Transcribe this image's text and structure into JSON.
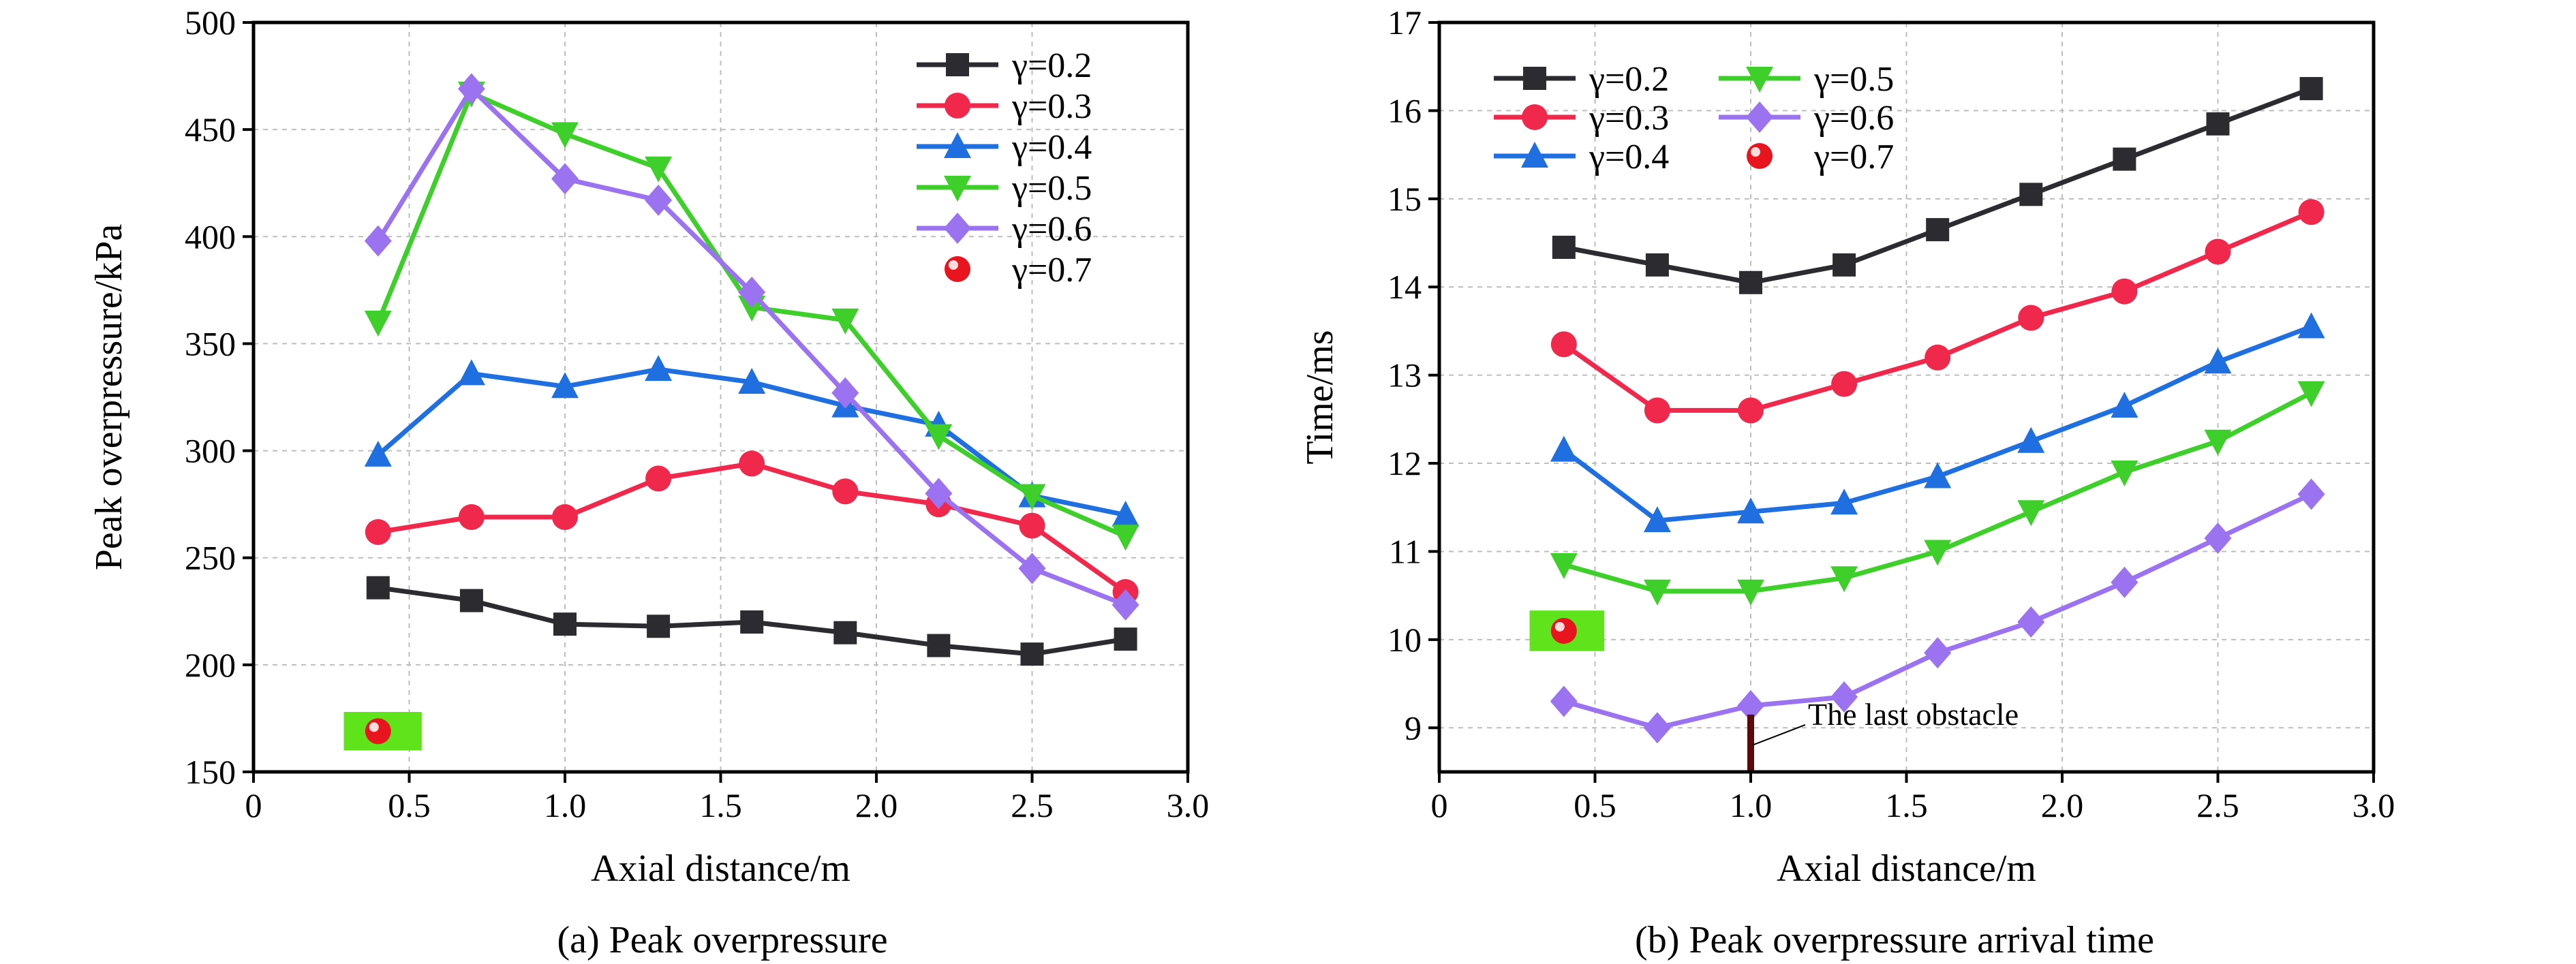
{
  "figure": {
    "panel_a_caption": "(a) Peak overpressure",
    "panel_b_caption": "(b) Peak overpressure arrival time",
    "colors": {
      "gamma_0_2": "#2b2b30",
      "gamma_0_3": "#f0284b",
      "gamma_0_4": "#1f6fe0",
      "gamma_0_5": "#3ecf2a",
      "gamma_0_6": "#9b73f0",
      "gamma_0_7": "#e8141e",
      "highlight_box": "#5fe31a",
      "obstacle_marker": "#5a0a0a"
    }
  },
  "chart_data": [
    {
      "type": "line",
      "caption": "(a) Peak overpressure",
      "xlabel": "Axial distance/m",
      "ylabel": "Peak overpressure/kPa",
      "xlim": [
        0,
        3.0
      ],
      "ylim": [
        150,
        500
      ],
      "x_ticks": [
        "0",
        "0.5",
        "1.0",
        "1.5",
        "2.0",
        "2.5",
        "3.0"
      ],
      "y_ticks": [
        "150",
        "200",
        "250",
        "300",
        "350",
        "400",
        "450",
        "500"
      ],
      "x_tick_values": [
        0,
        0.5,
        1.0,
        1.5,
        2.0,
        2.5,
        3.0
      ],
      "y_tick_values": [
        150,
        200,
        250,
        300,
        350,
        400,
        450,
        500
      ],
      "grid": true,
      "legend_position": "top-right",
      "legend_columns": 1,
      "series": [
        {
          "name": "γ=0.2",
          "marker": "square",
          "color": "#2b2b30",
          "x": [
            0.4,
            0.7,
            1.0,
            1.3,
            1.6,
            1.9,
            2.2,
            2.5,
            2.8
          ],
          "y": [
            236,
            230,
            219,
            218,
            220,
            215,
            209,
            205,
            212
          ]
        },
        {
          "name": "γ=0.3",
          "marker": "circle",
          "color": "#f0284b",
          "x": [
            0.4,
            0.7,
            1.0,
            1.3,
            1.6,
            1.9,
            2.2,
            2.5,
            2.8
          ],
          "y": [
            262,
            269,
            269,
            287,
            294,
            281,
            275,
            265,
            234
          ]
        },
        {
          "name": "γ=0.4",
          "marker": "triangle-up",
          "color": "#1f6fe0",
          "x": [
            0.4,
            0.7,
            1.0,
            1.3,
            1.6,
            1.9,
            2.2,
            2.5,
            2.8
          ],
          "y": [
            298,
            336,
            330,
            338,
            332,
            321,
            312,
            279,
            270
          ]
        },
        {
          "name": "γ=0.5",
          "marker": "triangle-down",
          "color": "#3ecf2a",
          "x": [
            0.4,
            0.7,
            1.0,
            1.3,
            1.6,
            1.9,
            2.2,
            2.5,
            2.8
          ],
          "y": [
            360,
            467,
            448,
            432,
            367,
            361,
            307,
            279,
            260
          ]
        },
        {
          "name": "γ=0.6",
          "marker": "diamond",
          "color": "#9b73f0",
          "x": [
            0.4,
            0.7,
            1.0,
            1.3,
            1.6,
            1.9,
            2.2,
            2.5,
            2.8
          ],
          "y": [
            398,
            469,
            427,
            417,
            374,
            327,
            280,
            245,
            228
          ]
        },
        {
          "name": "γ=0.7",
          "marker": "ball",
          "color": "#e8141e",
          "x": [
            0.4
          ],
          "y": [
            169
          ],
          "highlight": {
            "x_from": 0.29,
            "x_to": 0.54,
            "y_from": 160,
            "y_to": 178
          }
        }
      ]
    },
    {
      "type": "line",
      "caption": "(b) Peak overpressure arrival time",
      "xlabel": "Axial distance/m",
      "ylabel": "Time/ms",
      "xlim": [
        0,
        3.0
      ],
      "ylim": [
        8.5,
        17
      ],
      "x_ticks": [
        "0",
        "0.5",
        "1.0",
        "1.5",
        "2.0",
        "2.5",
        "3.0"
      ],
      "y_ticks": [
        "9",
        "10",
        "11",
        "12",
        "13",
        "14",
        "15",
        "16",
        "17"
      ],
      "x_tick_values": [
        0,
        0.5,
        1.0,
        1.5,
        2.0,
        2.5,
        3.0
      ],
      "y_tick_values": [
        9,
        10,
        11,
        12,
        13,
        14,
        15,
        16,
        17
      ],
      "grid": true,
      "legend_position": "top-left",
      "legend_columns": 2,
      "annotation": {
        "text": "The last obstacle",
        "x": 1.0,
        "y_top": 9.15
      },
      "series": [
        {
          "name": "γ=0.2",
          "marker": "square",
          "color": "#2b2b30",
          "x": [
            0.4,
            0.7,
            1.0,
            1.3,
            1.6,
            1.9,
            2.2,
            2.5,
            2.8
          ],
          "y": [
            14.45,
            14.25,
            14.05,
            14.25,
            14.65,
            15.05,
            15.45,
            15.85,
            16.25
          ]
        },
        {
          "name": "γ=0.3",
          "marker": "circle",
          "color": "#f0284b",
          "x": [
            0.4,
            0.7,
            1.0,
            1.3,
            1.6,
            1.9,
            2.2,
            2.5,
            2.8
          ],
          "y": [
            13.35,
            12.6,
            12.6,
            12.9,
            13.2,
            13.65,
            13.95,
            14.4,
            14.85
          ]
        },
        {
          "name": "γ=0.4",
          "marker": "triangle-up",
          "color": "#1f6fe0",
          "x": [
            0.4,
            0.7,
            1.0,
            1.3,
            1.6,
            1.9,
            2.2,
            2.5,
            2.8
          ],
          "y": [
            12.15,
            11.35,
            11.45,
            11.55,
            11.85,
            12.25,
            12.65,
            13.15,
            13.55
          ]
        },
        {
          "name": "γ=0.5",
          "marker": "triangle-down",
          "color": "#3ecf2a",
          "x": [
            0.4,
            0.7,
            1.0,
            1.3,
            1.6,
            1.9,
            2.2,
            2.5,
            2.8
          ],
          "y": [
            10.85,
            10.55,
            10.55,
            10.7,
            11.0,
            11.45,
            11.9,
            12.25,
            12.8
          ]
        },
        {
          "name": "γ=0.6",
          "marker": "diamond",
          "color": "#9b73f0",
          "x": [
            0.4,
            0.7,
            1.0,
            1.3,
            1.6,
            1.9,
            2.2,
            2.5,
            2.8
          ],
          "y": [
            9.3,
            9.0,
            9.25,
            9.35,
            9.85,
            10.2,
            10.65,
            11.15,
            11.65
          ]
        },
        {
          "name": "γ=0.7",
          "marker": "ball",
          "color": "#e8141e",
          "x": [
            0.4
          ],
          "y": [
            10.1
          ],
          "highlight": {
            "x_from": 0.29,
            "x_to": 0.53,
            "y_from": 9.87,
            "y_to": 10.33
          }
        }
      ]
    }
  ]
}
